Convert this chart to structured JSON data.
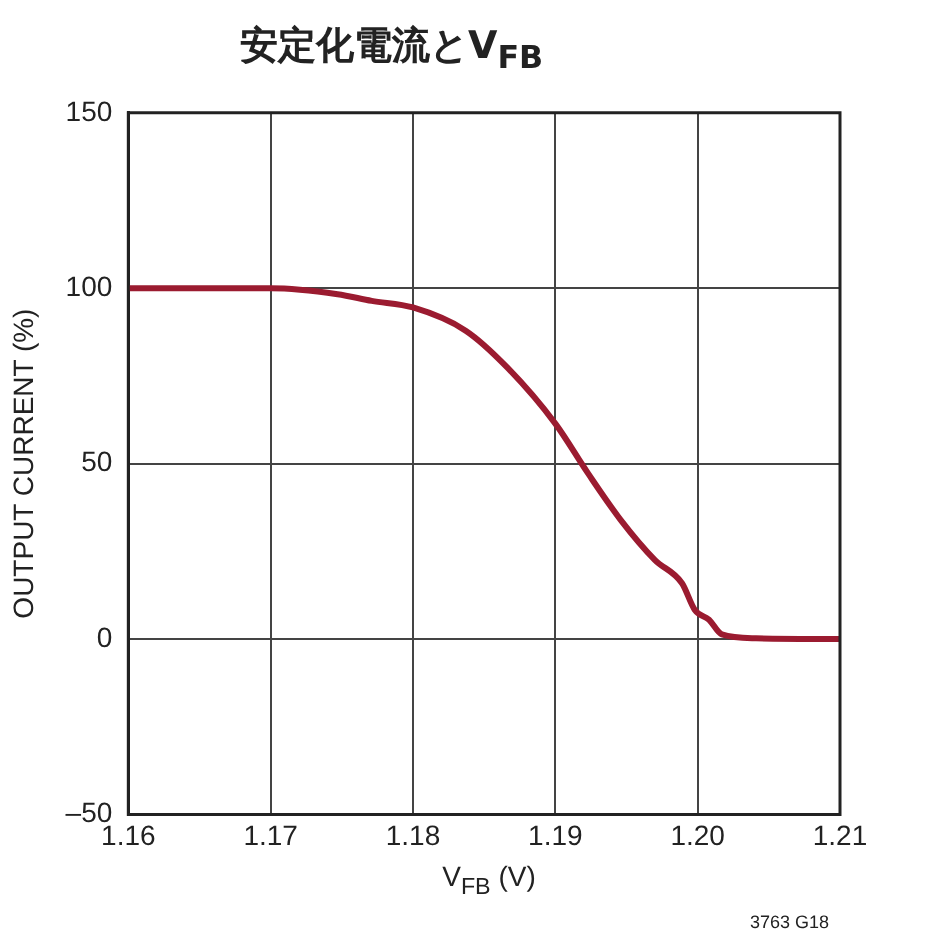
{
  "chart_data": {
    "type": "line",
    "title": "安定化電流とV$_{FB}$",
    "xlabel": "V$_{FB}$ (V)",
    "ylabel": "OUTPUT CURRENT (%)",
    "annotations": [
      "3763 G18"
    ],
    "series": [
      {
        "color": "#9b1b30",
        "x": [
          1.16,
          1.17,
          1.1747,
          1.1771,
          1.18,
          1.1837,
          1.1866,
          1.19,
          1.1923,
          1.1946,
          1.197,
          1.1989,
          1.1998,
          1.2008,
          1.2017,
          1.2041,
          1.21
        ],
        "values": [
          100,
          100,
          98.3,
          96.4,
          94.5,
          87.9,
          77.5,
          61.4,
          47.2,
          33.9,
          22.5,
          15.9,
          8.3,
          5.5,
          1.3,
          0.2,
          0
        ]
      }
    ],
    "xlim": [
      1.16,
      1.21
    ],
    "xticks": [
      {
        "value": 1.16,
        "label": "1.16"
      },
      {
        "value": 1.17,
        "label": "1.17"
      },
      {
        "value": 1.18,
        "label": "1.18"
      },
      {
        "value": 1.19,
        "label": "1.19"
      },
      {
        "value": 1.2,
        "label": "1.20"
      },
      {
        "value": 1.21,
        "label": "1.21"
      }
    ],
    "ylim": [
      -50,
      150
    ],
    "yticks": [
      {
        "value": -50,
        "label": "–50"
      },
      0,
      50,
      100,
      150
    ],
    "grid": true,
    "legend": false,
    "marker": "none",
    "line_style": "solid"
  }
}
